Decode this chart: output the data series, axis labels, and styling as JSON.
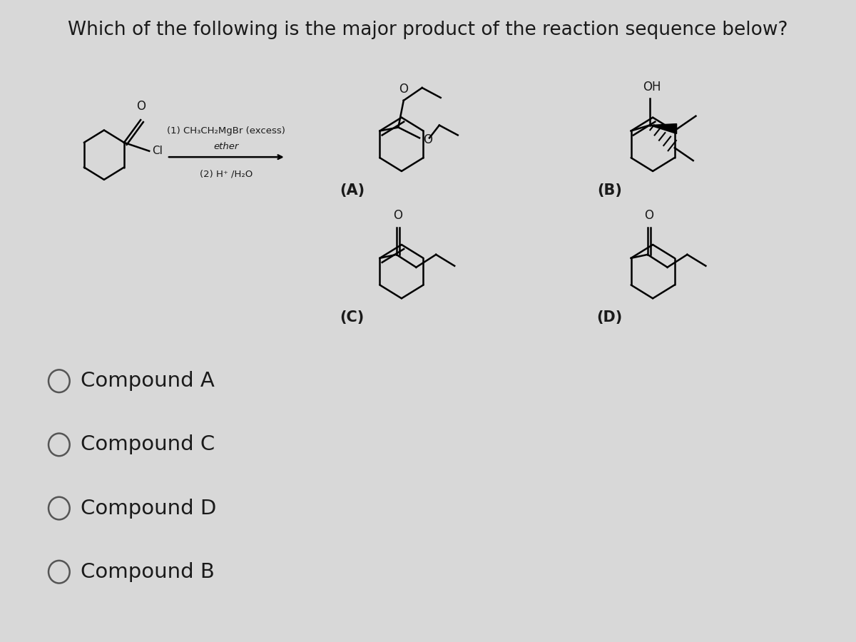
{
  "title": "Which of the following is the major product of the reaction sequence below?",
  "title_fontsize": 19,
  "background_color": "#d8d8d8",
  "reagents_line1": "(1) CH₃CH₂MgBr (excess)",
  "reagents_line2": "ether",
  "reagents_line3": "(2) H⁺ /H₂O",
  "label_A": "(A)",
  "label_B": "(B)",
  "label_C": "(C)",
  "label_D": "(D)",
  "options": [
    "Compound A",
    "Compound C",
    "Compound D",
    "Compound B"
  ],
  "option_fontsize": 21,
  "label_fontsize": 15,
  "text_color": "#1a1a1a"
}
